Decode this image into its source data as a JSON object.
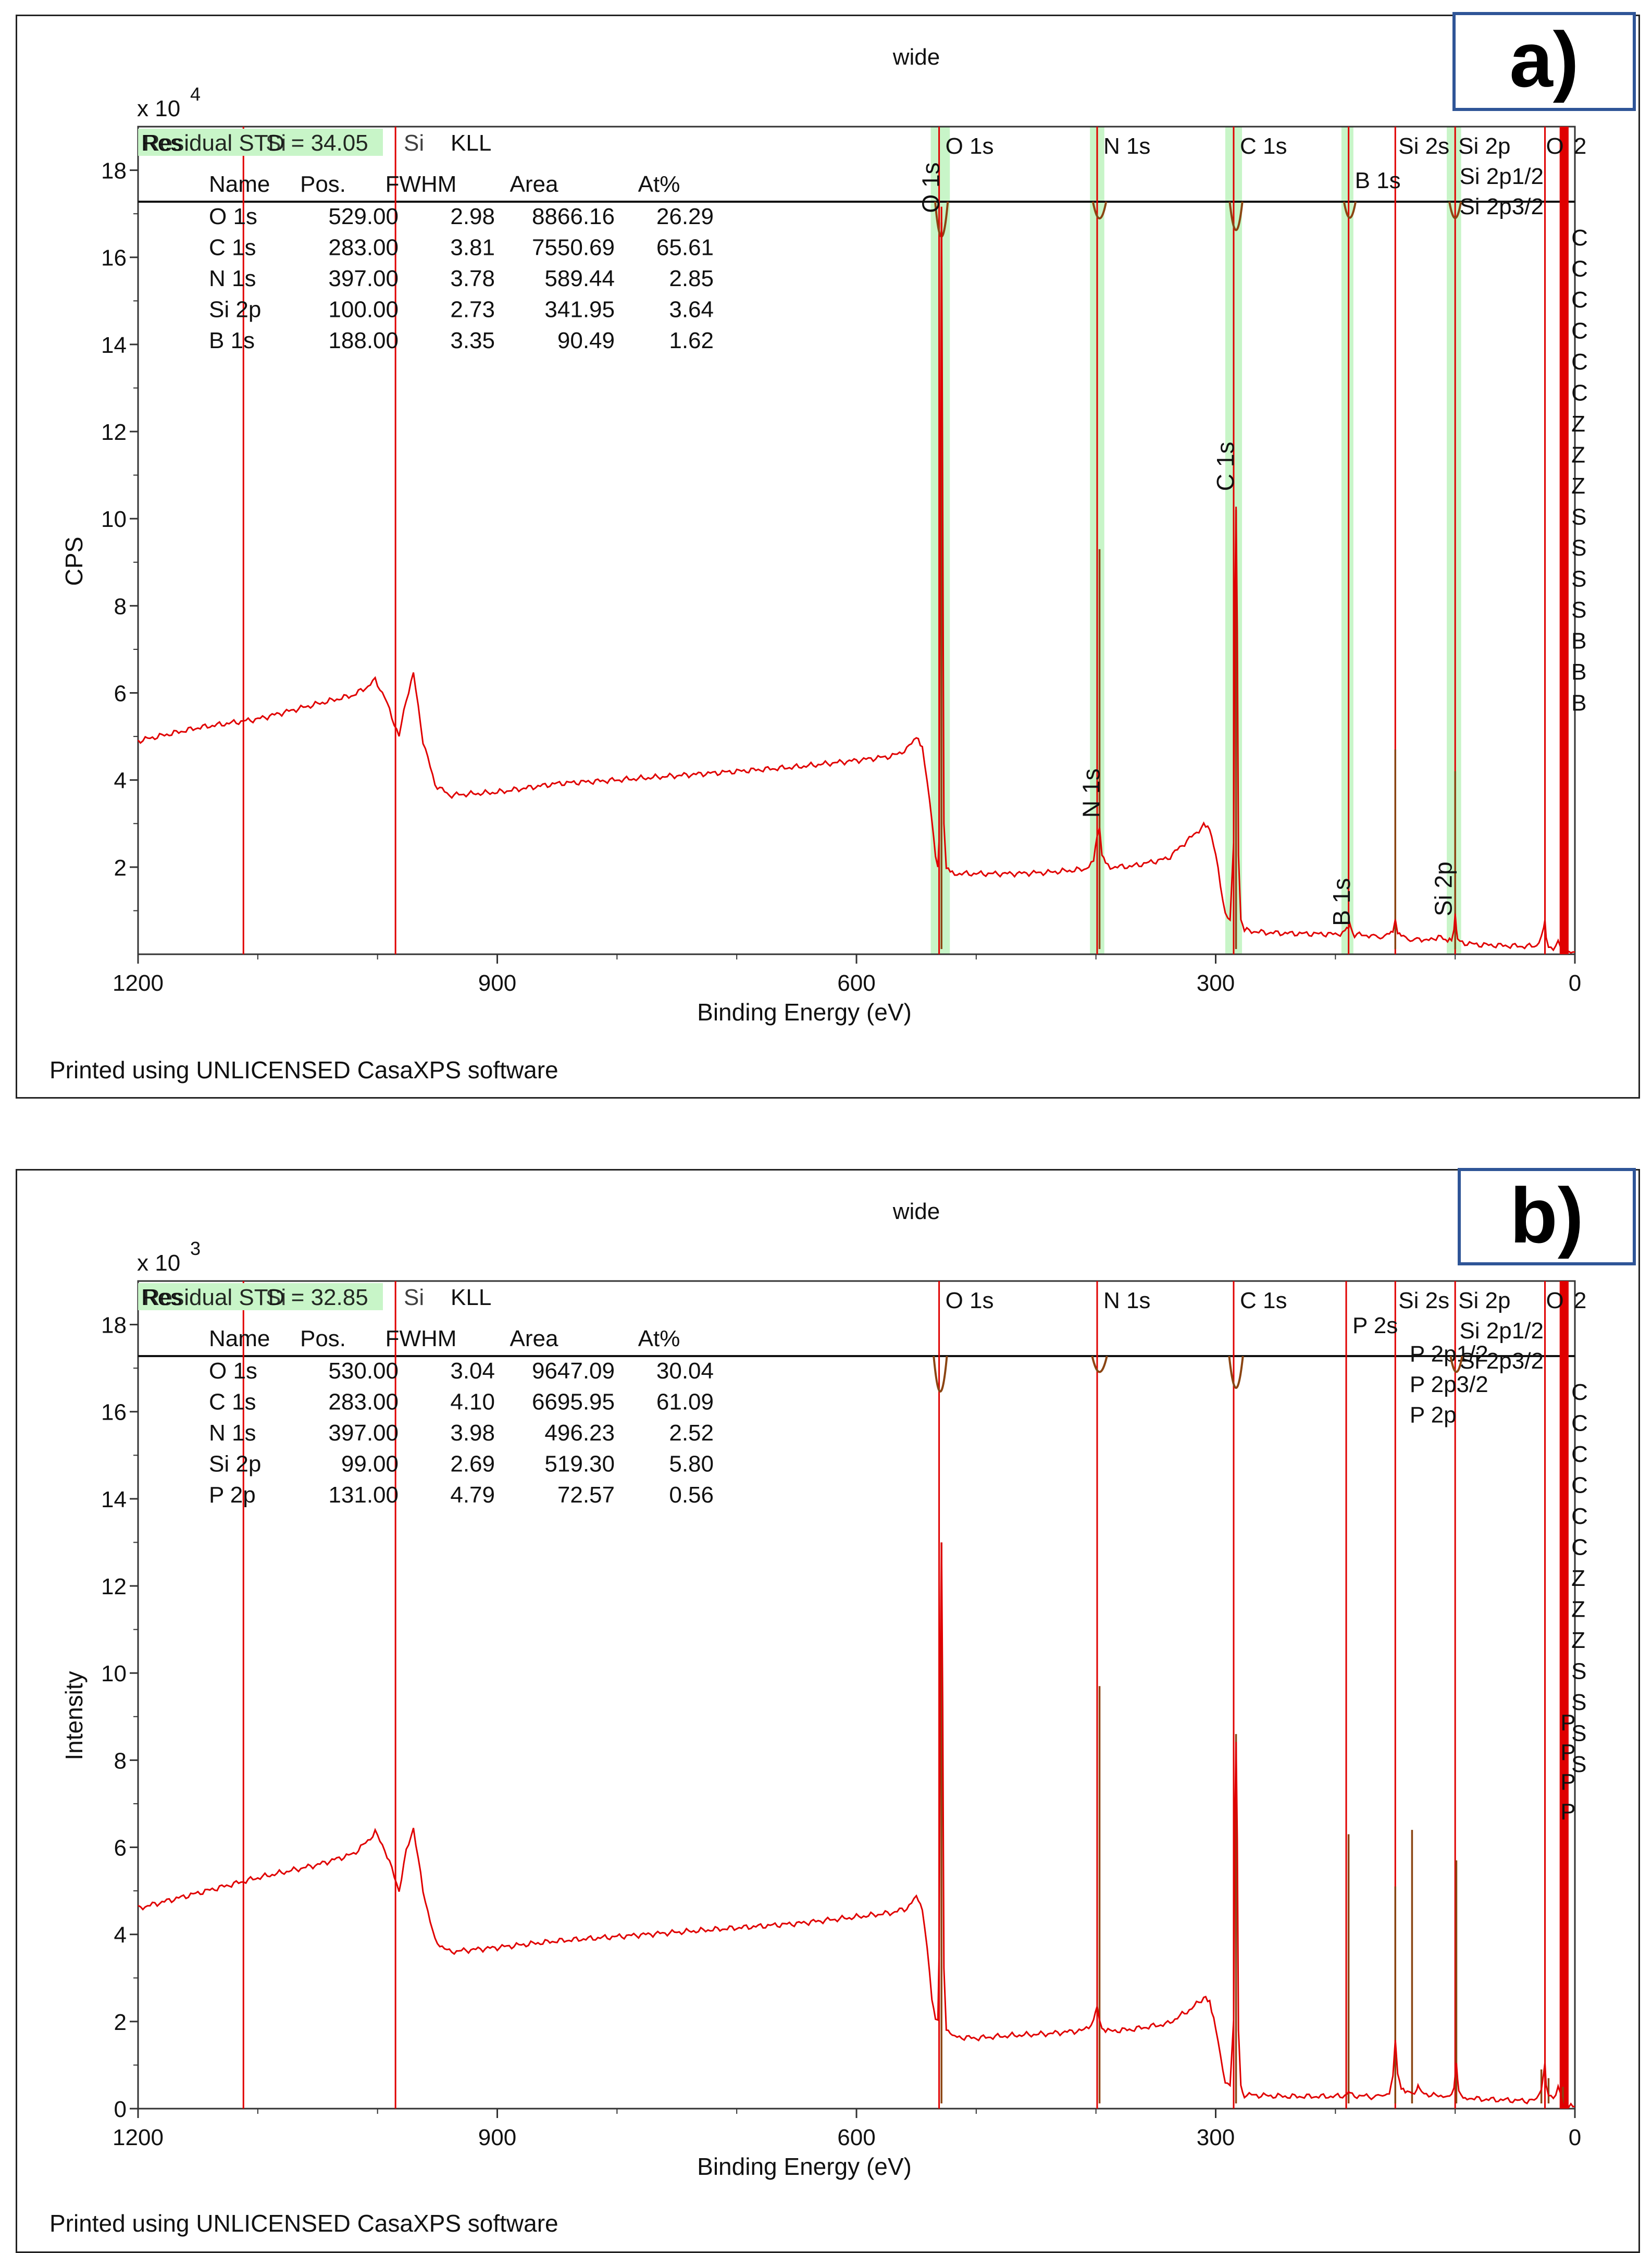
{
  "colors": {
    "spectrum": "#e00000",
    "component": "#8b4513",
    "region_band": "#c8f5c8",
    "marker": "#e00000",
    "frame": "#222222",
    "badge_border": "#2f5597"
  },
  "chart_data": [
    {
      "type": "line",
      "panel_label": "a)",
      "title": "wide",
      "xlabel": "Binding Energy (eV)",
      "ylabel": "CPS",
      "y_multiplier_base": "x 10",
      "y_multiplier_exp": "4",
      "xlim": [
        1200,
        0
      ],
      "ylim": [
        0,
        19
      ],
      "x_ticks": [
        1200,
        900,
        600,
        300,
        0
      ],
      "y_ticks": [
        2,
        4,
        6,
        8,
        10,
        12,
        14,
        16,
        18
      ],
      "footer": "Printed using UNLICENSED CasaXPS software",
      "header_overlap": {
        "prefix": "Res",
        "rest": "Residual STD = 34.05",
        "k": "KLL",
        "a": "Si",
        "b": "Si"
      },
      "table": {
        "headers": [
          "Name",
          "Pos.",
          "FWHM",
          "Area",
          "At%"
        ],
        "rows": [
          [
            "O 1s",
            "529.00",
            "2.98",
            "8866.16",
            "26.29"
          ],
          [
            "C 1s",
            "283.00",
            "3.81",
            "7550.69",
            "65.61"
          ],
          [
            "N 1s",
            "397.00",
            "3.78",
            "589.44",
            "2.85"
          ],
          [
            "Si 2p",
            "100.00",
            "2.73",
            "341.95",
            "3.64"
          ],
          [
            "B 1s",
            "188.00",
            "3.35",
            "90.49",
            "1.62"
          ]
        ]
      },
      "markers": [
        {
          "x": 1112,
          "label": ""
        },
        {
          "x": 985,
          "label": ""
        },
        {
          "x": 531,
          "label": "O 1s"
        },
        {
          "x": 399,
          "label": "N 1s"
        },
        {
          "x": 285,
          "label": "C 1s"
        },
        {
          "x": 189,
          "label": "B 1s"
        },
        {
          "x": 150,
          "label": "Si 2s"
        },
        {
          "x": 100,
          "label": "Si 2p"
        },
        {
          "x": 99,
          "label": "Si 2p1/2"
        },
        {
          "x": 99,
          "label": "Si 2p3/2"
        },
        {
          "x": 25,
          "label": "O"
        },
        {
          "x": 11,
          "label": ""
        },
        {
          "x": 9,
          "label": ""
        },
        {
          "x": 7,
          "label": "2"
        }
      ],
      "right_letters": [
        "C",
        "C",
        "C",
        "C",
        "C",
        "C",
        "Z",
        "Z",
        "Z",
        "S",
        "S",
        "S",
        "S",
        "B",
        "B",
        "B"
      ],
      "regions": [
        {
          "from": 538,
          "to": 522
        },
        {
          "from": 405,
          "to": 393
        },
        {
          "from": 292,
          "to": 278
        },
        {
          "from": 195,
          "to": 185
        },
        {
          "from": 107,
          "to": 95
        }
      ],
      "components": [
        {
          "name": "O 1s",
          "center": 529,
          "height": 14.8,
          "width": 2.4
        },
        {
          "name": "N 1s",
          "center": 397,
          "height": 0.8,
          "width": 2.5
        },
        {
          "name": "C 1s",
          "center": 283,
          "height": 9.8,
          "width": 2.4
        },
        {
          "name": "B 1s",
          "center": 188,
          "height": 0.3,
          "width": 2.2
        },
        {
          "name": "Si 2p",
          "center": 100,
          "height": 0.55,
          "width": 2.2
        }
      ],
      "peak_labels": [
        {
          "text": "O 1s",
          "x": 531,
          "y": 17.6
        },
        {
          "text": "N 1s",
          "x": 397,
          "y": 3.7
        },
        {
          "text": "C 1s",
          "x": 285,
          "y": 11.2
        },
        {
          "text": "B 1s",
          "x": 188,
          "y": 1.2
        },
        {
          "text": "Si 2p",
          "x": 103,
          "y": 1.5
        }
      ],
      "spectrum": {
        "x": [
          1200,
          1150,
          1100,
          1050,
          1020,
          1008,
          1002,
          994,
          988,
          982,
          976,
          970,
          962,
          952,
          940,
          900,
          850,
          800,
          750,
          700,
          650,
          600,
          570,
          558,
          550,
          545,
          541,
          537,
          534,
          532,
          531,
          530,
          529,
          528,
          527,
          525,
          520,
          500,
          470,
          440,
          410,
          402,
          399,
          397,
          395,
          392,
          388,
          370,
          340,
          320,
          310,
          305,
          300,
          296,
          292,
          288,
          285,
          284,
          283,
          282,
          281,
          279,
          276,
          260,
          240,
          220,
          200,
          192,
          189,
          188,
          187,
          184,
          170,
          155,
          152,
          150,
          148,
          145,
          130,
          118,
          114,
          108,
          103,
          101,
          100,
          99,
          98,
          96,
          90,
          80,
          60,
          40,
          32,
          28,
          26,
          25,
          24,
          22,
          18,
          14,
          10,
          5,
          0
        ],
        "y": [
          4.9,
          5.2,
          5.4,
          5.75,
          5.95,
          6.15,
          6.3,
          5.9,
          5.45,
          5.0,
          5.85,
          6.45,
          4.9,
          3.9,
          3.65,
          3.72,
          3.92,
          4.0,
          4.1,
          4.2,
          4.3,
          4.45,
          4.55,
          4.7,
          5.0,
          4.7,
          4.0,
          3.1,
          2.2,
          1.95,
          2.6,
          10.5,
          17.2,
          10.2,
          3.0,
          2.0,
          1.85,
          1.85,
          1.85,
          1.88,
          1.95,
          2.1,
          2.75,
          2.9,
          2.3,
          2.05,
          2.0,
          2.02,
          2.2,
          2.7,
          2.95,
          2.85,
          2.3,
          1.55,
          0.95,
          0.8,
          2.5,
          7.8,
          10.3,
          7.5,
          2.3,
          0.8,
          0.55,
          0.5,
          0.48,
          0.47,
          0.46,
          0.5,
          0.6,
          0.7,
          0.6,
          0.45,
          0.43,
          0.42,
          0.55,
          0.8,
          0.5,
          0.38,
          0.35,
          0.32,
          0.45,
          0.3,
          0.38,
          0.55,
          0.9,
          0.55,
          0.35,
          0.28,
          0.25,
          0.22,
          0.2,
          0.18,
          0.2,
          0.4,
          0.55,
          0.75,
          0.4,
          0.2,
          0.12,
          0.25,
          0.1,
          0.08,
          0.05
        ]
      },
      "sticks": [
        {
          "x": 529,
          "y": 16.8
        },
        {
          "x": 283,
          "y": 10.2
        },
        {
          "x": 397,
          "y": 9.3
        },
        {
          "x": 150,
          "y": 4.7
        },
        {
          "x": 100,
          "y": 4.2
        }
      ]
    },
    {
      "type": "line",
      "panel_label": "b)",
      "title": "wide",
      "xlabel": "Binding Energy (eV)",
      "ylabel": "Intensity",
      "y_multiplier_base": "x 10",
      "y_multiplier_exp": "3",
      "xlim": [
        1200,
        0
      ],
      "ylim": [
        0,
        19
      ],
      "x_ticks": [
        1200,
        900,
        600,
        300,
        0
      ],
      "y_ticks": [
        0,
        2,
        4,
        6,
        8,
        10,
        12,
        14,
        16,
        18
      ],
      "footer": "Printed using UNLICENSED CasaXPS software",
      "header_overlap": {
        "prefix": "Res",
        "rest": "Residual STD = 32.85",
        "k": "KLL",
        "a": "Si",
        "b": "Si"
      },
      "table": {
        "headers": [
          "Name",
          "Pos.",
          "FWHM",
          "Area",
          "At%"
        ],
        "rows": [
          [
            "O 1s",
            "530.00",
            "3.04",
            "9647.09",
            "30.04"
          ],
          [
            "C 1s",
            "283.00",
            "4.10",
            "6695.95",
            "61.09"
          ],
          [
            "N 1s",
            "397.00",
            "3.98",
            "496.23",
            "2.52"
          ],
          [
            "Si 2p",
            "99.00",
            "2.69",
            "519.30",
            "5.80"
          ],
          [
            "P 2p",
            "131.00",
            "4.79",
            "72.57",
            "0.56"
          ]
        ]
      },
      "markers": [
        {
          "x": 1112,
          "label": ""
        },
        {
          "x": 985,
          "label": ""
        },
        {
          "x": 531,
          "label": "O 1s"
        },
        {
          "x": 399,
          "label": "N 1s"
        },
        {
          "x": 285,
          "label": "C 1s"
        },
        {
          "x": 191,
          "label": "P 2s"
        },
        {
          "x": 150,
          "label": "Si 2s"
        },
        {
          "x": 100,
          "label": "Si 2p"
        },
        {
          "x": 99,
          "label": "Si 2p1/2"
        },
        {
          "x": 99,
          "label": "Si 2p3/2"
        },
        {
          "x": 25,
          "label": "O"
        },
        {
          "x": 11,
          "label": ""
        },
        {
          "x": 9,
          "label": ""
        },
        {
          "x": 7,
          "label": "2"
        }
      ],
      "extra_labels": [
        {
          "text": "P 2p1/2",
          "x": 138,
          "y": 17.15
        },
        {
          "text": "P 2p3/2",
          "x": 138,
          "y": 16.45
        },
        {
          "text": "P 2p",
          "x": 138,
          "y": 15.75
        }
      ],
      "right_letters": [
        "C",
        "C",
        "C",
        "C",
        "C",
        "C",
        "Z",
        "Z",
        "Z",
        "S",
        "S",
        "S",
        "S"
      ],
      "right_letters_p": [
        "P",
        "P",
        "P",
        "P"
      ],
      "regions": [],
      "components": [
        {
          "name": "O 1s",
          "center": 530,
          "height": 15.2,
          "width": 2.5
        },
        {
          "name": "N 1s",
          "center": 397,
          "height": 0.2,
          "width": 2.8
        },
        {
          "name": "C 1s",
          "center": 283,
          "height": 12.4,
          "width": 2.6
        },
        {
          "name": "Si 2p",
          "center": 99,
          "height": 0.15,
          "width": 2.2
        }
      ],
      "peak_labels": [],
      "spectrum": {
        "x": [
          1200,
          1150,
          1100,
          1050,
          1020,
          1008,
          1002,
          994,
          988,
          982,
          976,
          970,
          962,
          952,
          940,
          900,
          850,
          800,
          750,
          700,
          650,
          600,
          570,
          558,
          550,
          545,
          541,
          537,
          534,
          532,
          531,
          530,
          529,
          528,
          527,
          525,
          520,
          500,
          470,
          440,
          410,
          402,
          399,
          397,
          395,
          392,
          388,
          370,
          340,
          320,
          310,
          305,
          300,
          296,
          292,
          288,
          285,
          284,
          283,
          282,
          281,
          279,
          276,
          260,
          240,
          220,
          200,
          192,
          190,
          189,
          188,
          186,
          170,
          155,
          152,
          150,
          148,
          145,
          140,
          136,
          132,
          131,
          130,
          126,
          118,
          108,
          103,
          101,
          99,
          98,
          97,
          95,
          90,
          80,
          60,
          40,
          32,
          28,
          26,
          25,
          24,
          22,
          18,
          14,
          10,
          5,
          0
        ],
        "y": [
          4.6,
          4.95,
          5.3,
          5.6,
          5.85,
          6.15,
          6.35,
          5.95,
          5.5,
          5.0,
          5.9,
          6.45,
          5.0,
          3.85,
          3.6,
          3.7,
          3.85,
          3.95,
          4.05,
          4.15,
          4.25,
          4.4,
          4.5,
          4.6,
          4.85,
          4.55,
          3.7,
          2.5,
          2.1,
          2.0,
          3.5,
          10.0,
          13.0,
          9.2,
          3.2,
          1.8,
          1.65,
          1.62,
          1.68,
          1.72,
          1.8,
          2.0,
          2.35,
          2.0,
          1.85,
          1.8,
          1.78,
          1.82,
          1.95,
          2.3,
          2.55,
          2.45,
          1.9,
          1.2,
          0.55,
          0.6,
          2.0,
          6.5,
          8.4,
          6.2,
          1.8,
          0.5,
          0.32,
          0.3,
          0.28,
          0.28,
          0.28,
          0.3,
          0.35,
          0.4,
          0.35,
          0.3,
          0.28,
          0.3,
          0.75,
          1.55,
          0.8,
          0.5,
          0.4,
          0.35,
          0.45,
          0.5,
          0.42,
          0.35,
          0.3,
          0.3,
          0.35,
          0.5,
          1.05,
          0.7,
          0.45,
          0.3,
          0.25,
          0.22,
          0.2,
          0.18,
          0.2,
          0.5,
          0.8,
          1.0,
          0.5,
          0.3,
          0.25,
          0.5,
          0.1,
          0.08,
          0.05
        ]
      },
      "sticks": [
        {
          "x": 529,
          "y": 13.0
        },
        {
          "x": 283,
          "y": 8.6
        },
        {
          "x": 397,
          "y": 9.7
        },
        {
          "x": 189,
          "y": 6.3
        },
        {
          "x": 150,
          "y": 5.1
        },
        {
          "x": 136,
          "y": 6.4
        },
        {
          "x": 99,
          "y": 5.7
        },
        {
          "x": 28,
          "y": 0.9
        },
        {
          "x": 22,
          "y": 0.7
        },
        {
          "x": 10,
          "y": 0.5
        }
      ]
    }
  ]
}
